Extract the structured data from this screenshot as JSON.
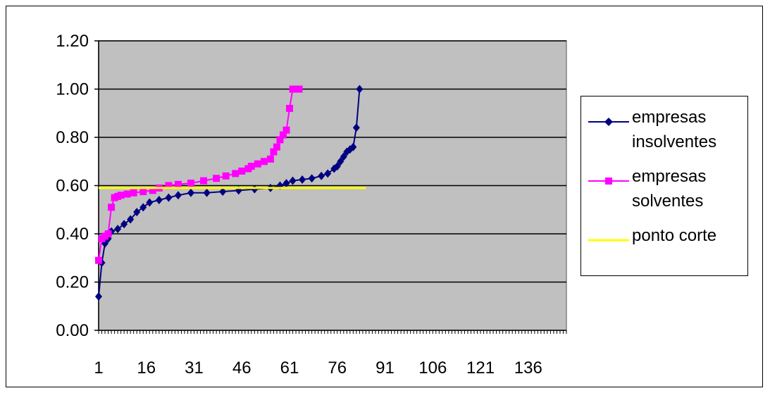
{
  "chart_data": {
    "type": "line",
    "ylim": [
      0,
      1.2
    ],
    "y_ticks": [
      "0.00",
      "0.20",
      "0.40",
      "0.60",
      "0.80",
      "1.00",
      "1.20"
    ],
    "xlim": [
      1,
      148
    ],
    "x_ticks": [
      "1",
      "16",
      "31",
      "46",
      "61",
      "76",
      "91",
      "106",
      "121",
      "136"
    ],
    "grid": "horizontal",
    "plot_background": "#c0c0c0",
    "legend_position": "right",
    "series": [
      {
        "name": "empresas\ninsolventes",
        "color": "#000080",
        "marker": "diamond",
        "x": [
          1,
          2,
          3,
          4,
          5,
          7,
          9,
          11,
          13,
          15,
          17,
          20,
          23,
          26,
          30,
          35,
          40,
          45,
          50,
          55,
          58,
          60,
          62,
          65,
          68,
          71,
          73,
          75,
          76,
          77,
          78,
          79,
          80,
          81,
          82,
          83
        ],
        "y": [
          0.14,
          0.28,
          0.36,
          0.38,
          0.41,
          0.42,
          0.44,
          0.46,
          0.49,
          0.51,
          0.53,
          0.54,
          0.55,
          0.56,
          0.57,
          0.57,
          0.575,
          0.58,
          0.585,
          0.59,
          0.6,
          0.61,
          0.62,
          0.625,
          0.63,
          0.64,
          0.65,
          0.67,
          0.68,
          0.7,
          0.72,
          0.74,
          0.75,
          0.76,
          0.84,
          1.0
        ]
      },
      {
        "name": "empresas\nsolventes",
        "color": "#ff00ff",
        "marker": "square",
        "x": [
          1,
          2,
          3,
          4,
          5,
          6,
          7,
          8,
          10,
          12,
          15,
          18,
          20,
          23,
          26,
          30,
          34,
          38,
          41,
          44,
          46,
          48,
          49,
          51,
          53,
          55,
          56,
          57,
          58,
          59,
          60,
          61,
          62,
          63,
          64
        ],
        "y": [
          0.29,
          0.38,
          0.39,
          0.4,
          0.51,
          0.55,
          0.555,
          0.56,
          0.565,
          0.57,
          0.575,
          0.58,
          0.59,
          0.6,
          0.605,
          0.61,
          0.62,
          0.63,
          0.64,
          0.65,
          0.66,
          0.67,
          0.68,
          0.69,
          0.7,
          0.71,
          0.74,
          0.76,
          0.79,
          0.81,
          0.83,
          0.92,
          1.0,
          1.0,
          1.0
        ]
      },
      {
        "name": "ponto corte",
        "color": "#ffff00",
        "marker": "none",
        "x": [
          1,
          85
        ],
        "y": [
          0.59,
          0.59
        ]
      }
    ]
  }
}
